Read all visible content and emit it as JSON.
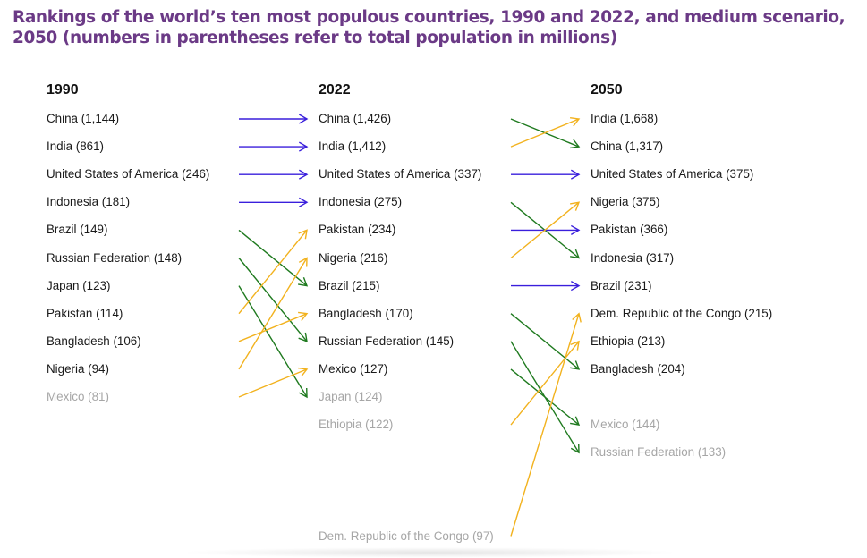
{
  "title": "Rankings of the world’s ten most populous countries, 1990 and 2022, and medium scenario, 2050 (numbers in parentheses refer to total population in millions)",
  "colors": {
    "title": "#6b3a86",
    "same": "#3a1fdc",
    "up": "#f2b21e",
    "down": "#1f7a1f",
    "outside_top_ten": "#a6a6a6"
  },
  "chart_data": {
    "type": "slope-ranking",
    "columns": [
      {
        "header": "1990",
        "entries": [
          {
            "label": "China (1,144)",
            "country": "China",
            "population_millions": 1144,
            "rank": 1
          },
          {
            "label": "India (861)",
            "country": "India",
            "population_millions": 861,
            "rank": 2
          },
          {
            "label": "United States of America (246)",
            "country": "United States of America",
            "population_millions": 246,
            "rank": 3
          },
          {
            "label": "Indonesia (181)",
            "country": "Indonesia",
            "population_millions": 181,
            "rank": 4
          },
          {
            "label": "Brazil (149)",
            "country": "Brazil",
            "population_millions": 149,
            "rank": 5
          },
          {
            "label": "Russian Federation (148)",
            "country": "Russian Federation",
            "population_millions": 148,
            "rank": 6
          },
          {
            "label": "Japan (123)",
            "country": "Japan",
            "population_millions": 123,
            "rank": 7
          },
          {
            "label": "Pakistan (114)",
            "country": "Pakistan",
            "population_millions": 114,
            "rank": 8
          },
          {
            "label": "Bangladesh (106)",
            "country": "Bangladesh",
            "population_millions": 106,
            "rank": 9
          },
          {
            "label": "Nigeria (94)",
            "country": "Nigeria",
            "population_millions": 94,
            "rank": 10
          },
          {
            "label": "Mexico (81)",
            "country": "Mexico",
            "population_millions": 81,
            "rank": 11,
            "grey": true
          }
        ]
      },
      {
        "header": "2022",
        "entries": [
          {
            "label": "China (1,426)",
            "country": "China",
            "population_millions": 1426,
            "rank": 1
          },
          {
            "label": "India (1,412)",
            "country": "India",
            "population_millions": 1412,
            "rank": 2
          },
          {
            "label": "United States of America (337)",
            "country": "United States of America",
            "population_millions": 337,
            "rank": 3
          },
          {
            "label": "Indonesia (275)",
            "country": "Indonesia",
            "population_millions": 275,
            "rank": 4
          },
          {
            "label": "Pakistan (234)",
            "country": "Pakistan",
            "population_millions": 234,
            "rank": 5
          },
          {
            "label": "Nigeria (216)",
            "country": "Nigeria",
            "population_millions": 216,
            "rank": 6
          },
          {
            "label": "Brazil (215)",
            "country": "Brazil",
            "population_millions": 215,
            "rank": 7
          },
          {
            "label": "Bangladesh (170)",
            "country": "Bangladesh",
            "population_millions": 170,
            "rank": 8
          },
          {
            "label": "Russian Federation (145)",
            "country": "Russian Federation",
            "population_millions": 145,
            "rank": 9
          },
          {
            "label": "Mexico (127)",
            "country": "Mexico",
            "population_millions": 127,
            "rank": 10
          },
          {
            "label": "Japan (124)",
            "country": "Japan",
            "population_millions": 124,
            "rank": 11,
            "grey": true
          },
          {
            "label": "Ethiopia (122)",
            "country": "Ethiopia",
            "population_millions": 122,
            "rank": 12,
            "grey": true
          },
          {
            "label": "Dem. Republic of the Congo (97)",
            "country": "Dem. Republic of the Congo",
            "population_millions": 97,
            "rank": 16,
            "grey": true
          }
        ]
      },
      {
        "header": "2050",
        "entries": [
          {
            "label": "India (1,668)",
            "country": "India",
            "population_millions": 1668,
            "rank": 1
          },
          {
            "label": "China (1,317)",
            "country": "China",
            "population_millions": 1317,
            "rank": 2
          },
          {
            "label": "United States of America (375)",
            "country": "United States of America",
            "population_millions": 375,
            "rank": 3
          },
          {
            "label": "Nigeria (375)",
            "country": "Nigeria",
            "population_millions": 375,
            "rank": 4
          },
          {
            "label": "Pakistan (366)",
            "country": "Pakistan",
            "population_millions": 366,
            "rank": 5
          },
          {
            "label": "Indonesia (317)",
            "country": "Indonesia",
            "population_millions": 317,
            "rank": 6
          },
          {
            "label": "Brazil (231)",
            "country": "Brazil",
            "population_millions": 231,
            "rank": 7
          },
          {
            "label": "Dem. Republic of the Congo (215)",
            "country": "Dem. Republic of the Congo",
            "population_millions": 215,
            "rank": 8
          },
          {
            "label": "Ethiopia (213)",
            "country": "Ethiopia",
            "population_millions": 213,
            "rank": 9
          },
          {
            "label": "Bangladesh (204)",
            "country": "Bangladesh",
            "population_millions": 204,
            "rank": 10
          },
          {
            "label": "Mexico (144)",
            "country": "Mexico",
            "population_millions": 144,
            "rank": 12,
            "grey": true
          },
          {
            "label": "Russian Federation (133)",
            "country": "Russian Federation",
            "population_millions": 133,
            "rank": 13,
            "grey": true
          }
        ]
      }
    ],
    "transitions": [
      {
        "from_column": "1990",
        "to_column": "2022",
        "links": [
          [
            "China",
            "China",
            "same"
          ],
          [
            "India",
            "India",
            "same"
          ],
          [
            "United States of America",
            "United States of America",
            "same"
          ],
          [
            "Indonesia",
            "Indonesia",
            "same"
          ],
          [
            "Brazil",
            "Brazil",
            "down"
          ],
          [
            "Russian Federation",
            "Russian Federation",
            "down"
          ],
          [
            "Japan",
            "Japan",
            "down"
          ],
          [
            "Pakistan",
            "Pakistan",
            "up"
          ],
          [
            "Bangladesh",
            "Bangladesh",
            "up"
          ],
          [
            "Nigeria",
            "Nigeria",
            "up"
          ],
          [
            "Mexico",
            "Mexico",
            "up"
          ]
        ]
      },
      {
        "from_column": "2022",
        "to_column": "2050",
        "links": [
          [
            "China",
            "China",
            "down"
          ],
          [
            "India",
            "India",
            "up"
          ],
          [
            "United States of America",
            "United States of America",
            "same"
          ],
          [
            "Indonesia",
            "Indonesia",
            "down"
          ],
          [
            "Pakistan",
            "Pakistan",
            "same"
          ],
          [
            "Nigeria",
            "Nigeria",
            "up"
          ],
          [
            "Brazil",
            "Brazil",
            "same"
          ],
          [
            "Bangladesh",
            "Bangladesh",
            "down"
          ],
          [
            "Russian Federation",
            "Russian Federation",
            "down"
          ],
          [
            "Mexico",
            "Mexico",
            "down"
          ],
          [
            "Ethiopia",
            "Ethiopia",
            "up"
          ],
          [
            "Dem. Republic of the Congo",
            "Dem. Republic of the Congo",
            "up"
          ]
        ]
      }
    ]
  }
}
